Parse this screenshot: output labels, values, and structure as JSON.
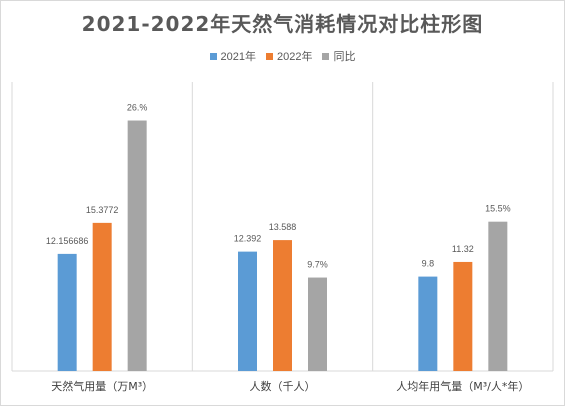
{
  "chart_data": {
    "type": "bar",
    "title": "2021-2022年天然气消耗情况对比柱形图",
    "categories": [
      "天然气用量（万M³）",
      "人数（千人）",
      "人均年用气量（M³/人*年）"
    ],
    "series": [
      {
        "name": "2021年",
        "color": "#5b9bd5",
        "values": [
          12.156686,
          12.392,
          9.8
        ],
        "labels": [
          "12.156686",
          "12.392",
          "9.8"
        ]
      },
      {
        "name": "2022年",
        "color": "#ed7d31",
        "values": [
          15.3772,
          13.588,
          11.32
        ],
        "labels": [
          "15.3772",
          "13.588",
          "11.32"
        ]
      },
      {
        "name": "同比",
        "color": "#a5a5a5",
        "values": [
          26,
          9.7,
          15.5
        ],
        "labels": [
          "26.%",
          "9.7%",
          "15.5%"
        ]
      }
    ],
    "ylim": [
      0,
      30
    ],
    "grid": false,
    "legend_position": "top"
  }
}
